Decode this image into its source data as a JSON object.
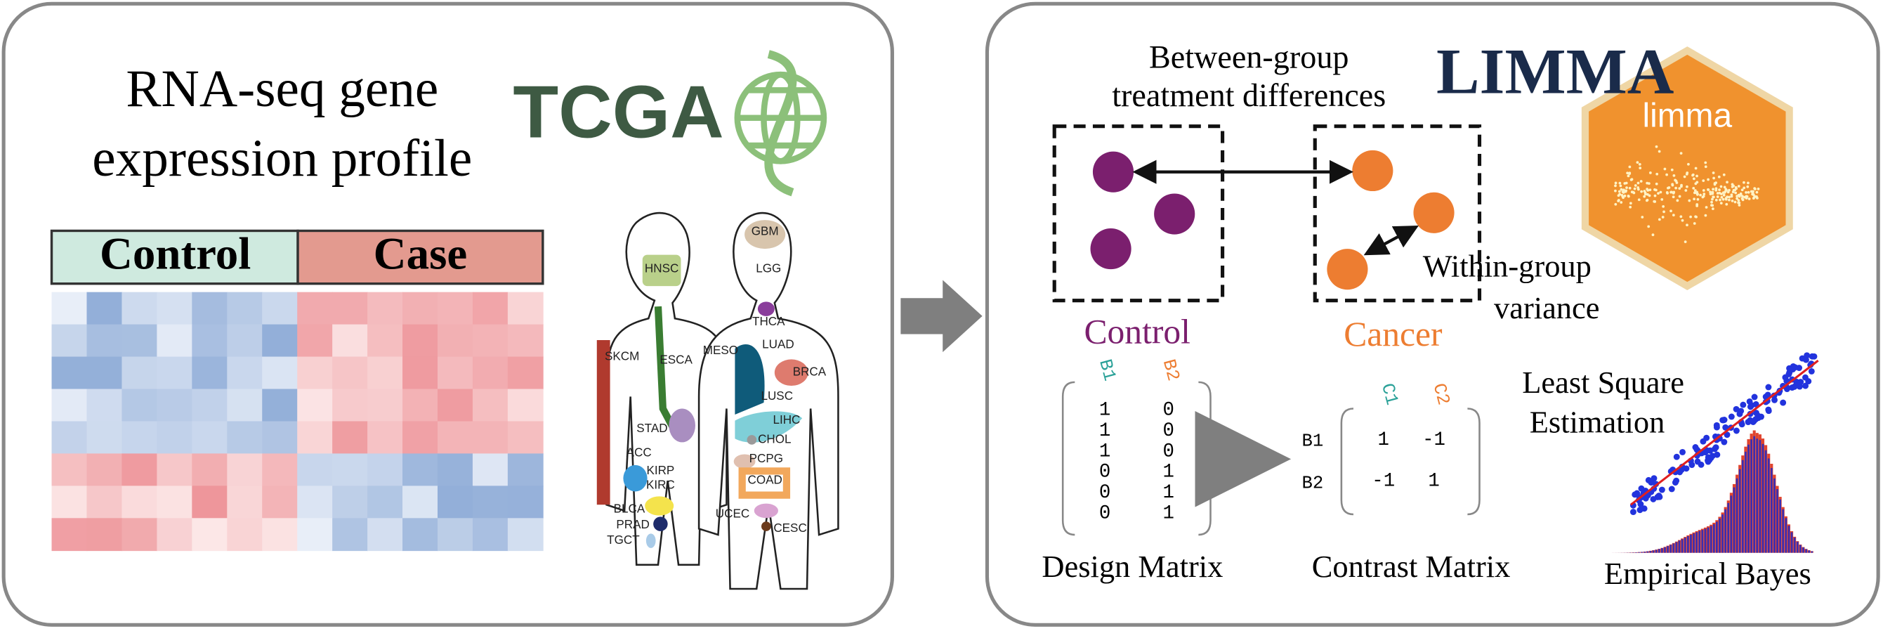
{
  "left_panel": {
    "title_lines": [
      "RNA-seq gene",
      "expression profile"
    ],
    "logo": "TCGA",
    "heatmap": {
      "groups": [
        "Control",
        "Case"
      ]
    },
    "cancer_types": [
      "GBM",
      "LGG",
      "HNSC",
      "THCA",
      "SKCM",
      "ESCA",
      "MESO",
      "LUAD",
      "BRCA",
      "LUSC",
      "LIHC",
      "CHOL",
      "STAD",
      "ACC",
      "KIRP",
      "KIRC",
      "PCPG",
      "COAD",
      "BLCA",
      "PRAD",
      "TGCT",
      "UCEC",
      "CESC"
    ]
  },
  "right_panel": {
    "between_group_lines": [
      "Between-group",
      "treatment differences"
    ],
    "title": "LIMMA",
    "logo": "limma",
    "within_group_lines": [
      "Within-group",
      "variance"
    ],
    "groups": [
      "Control",
      "Cancer"
    ],
    "design_matrix": {
      "columns": [
        "B1",
        "B2"
      ],
      "rows": [
        [
          1,
          0
        ],
        [
          1,
          0
        ],
        [
          1,
          0
        ],
        [
          0,
          1
        ],
        [
          0,
          1
        ],
        [
          0,
          1
        ]
      ],
      "label": "Design Matrix"
    },
    "contrast_matrix": {
      "columns": [
        "C1",
        "C2"
      ],
      "row_names": [
        "B1",
        "B2"
      ],
      "rows": [
        [
          1,
          -1
        ],
        [
          -1,
          1
        ]
      ],
      "label": "Contrast Matrix"
    },
    "least_square_lines": [
      "Least Square",
      "Estimation"
    ],
    "empirical_bayes": "Empirical Bayes"
  }
}
